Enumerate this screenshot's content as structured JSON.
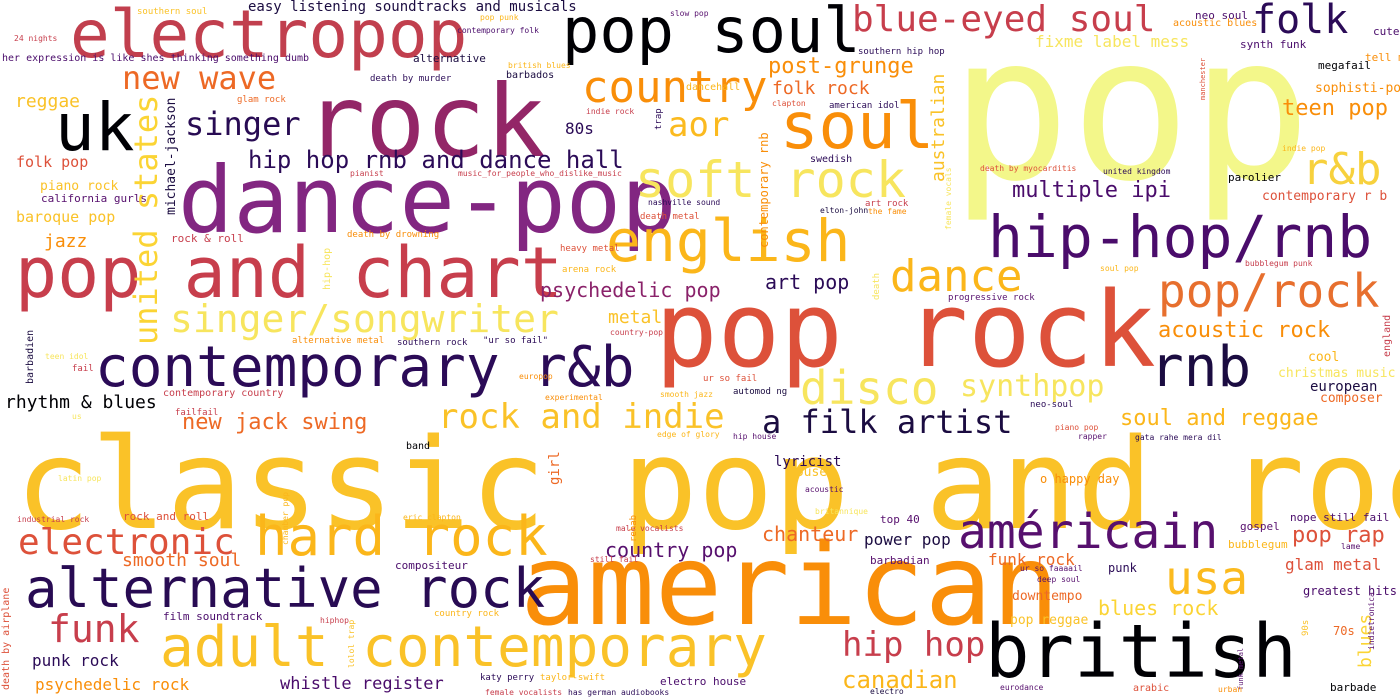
{
  "words": [
    {
      "text": "pop",
      "color": "#f3f78a"
    },
    {
      "text": "classic pop and rock",
      "color": "#fac228"
    },
    {
      "text": "american",
      "color": "#f98e09"
    },
    {
      "text": "pop rock",
      "color": "#dd513a"
    },
    {
      "text": "rock",
      "color": "#932667"
    },
    {
      "text": "dance-pop",
      "color": "#822681"
    },
    {
      "text": "pop and chart",
      "color": "#c73e4c"
    },
    {
      "text": "electropop",
      "color": "#c13f4e"
    },
    {
      "text": "british",
      "color": "#000004"
    },
    {
      "text": "adult contemporary",
      "color": "#fac228"
    },
    {
      "text": "contemporary r&b",
      "color": "#2b0b57"
    },
    {
      "text": "pop soul",
      "color": "#000004"
    },
    {
      "text": "alternative rock",
      "color": "#280b53"
    },
    {
      "text": "hip-hop/rnb",
      "color": "#4a0c6b"
    },
    {
      "text": "english",
      "color": "#fbb61a"
    },
    {
      "text": "soul",
      "color": "#f98e09"
    },
    {
      "text": "uk",
      "color": "#000004"
    },
    {
      "text": "hard rock",
      "color": "#fbb61a"
    },
    {
      "text": "américain",
      "color": "#57106e"
    },
    {
      "text": "soft rock",
      "color": "#f7e55e"
    },
    {
      "text": "country",
      "color": "#f98e09"
    },
    {
      "text": "rnb",
      "color": "#1b0c41"
    },
    {
      "text": "blue-eyed soul",
      "color": "#c73e4c"
    },
    {
      "text": "usa",
      "color": "#fbba1f"
    },
    {
      "text": "pop/rock",
      "color": "#e76f2e"
    },
    {
      "text": "r&b",
      "color": "#f7d13d"
    },
    {
      "text": "dance",
      "color": "#fbb61a"
    },
    {
      "text": "disco",
      "color": "#f7e55e"
    },
    {
      "text": "folk",
      "color": "#2b0b57"
    },
    {
      "text": "singer/songwriter",
      "color": "#f7e55e"
    },
    {
      "text": "british",
      "color": "#000004"
    },
    {
      "text": "rock and indie",
      "color": "#fac228"
    },
    {
      "text": "electronic",
      "color": "#dd513a"
    },
    {
      "text": "united states",
      "color": "#fbd434"
    },
    {
      "text": "new wave",
      "color": "#ed6925"
    },
    {
      "text": "hip hop",
      "color": "#c73e4c"
    },
    {
      "text": "funk",
      "color": "#c73e4c"
    },
    {
      "text": "synthpop",
      "color": "#f7e55e"
    },
    {
      "text": "a filk artist",
      "color": "#1b0c41"
    },
    {
      "text": "singer",
      "color": "#280b53"
    },
    {
      "text": "canadian",
      "color": "#fbb61a"
    },
    {
      "text": "aor",
      "color": "#fbba1f"
    },
    {
      "text": "hip hop rnb and dance hall",
      "color": "#2b0b57"
    },
    {
      "text": "new jack swing",
      "color": "#ed6925"
    },
    {
      "text": "multiple ipi",
      "color": "#4a0c6b"
    },
    {
      "text": "acoustic rock",
      "color": "#f98e09"
    },
    {
      "text": "soul and reggae",
      "color": "#fbb61a"
    },
    {
      "text": "post-grunge",
      "color": "#f98e09"
    },
    {
      "text": "psychedelic pop",
      "color": "#8a226a"
    },
    {
      "text": "pop rap",
      "color": "#dd513a"
    },
    {
      "text": "teen pop",
      "color": "#f98e09"
    },
    {
      "text": "blues rock",
      "color": "#fbd434"
    },
    {
      "text": "smooth soul",
      "color": "#ed6925"
    },
    {
      "text": "country pop",
      "color": "#57106e"
    },
    {
      "text": "punk rock",
      "color": "#2b0b57"
    },
    {
      "text": "psychedelic rock",
      "color": "#f98e09"
    },
    {
      "text": "whistle register",
      "color": "#4a0c6b"
    },
    {
      "text": "art pop",
      "color": "#2b0b57"
    },
    {
      "text": "folk rock",
      "color": "#ed6925"
    },
    {
      "text": "power pop",
      "color": "#1b0c41"
    },
    {
      "text": "funk rock",
      "color": "#ed6925"
    },
    {
      "text": "chanteur",
      "color": "#ed6925"
    },
    {
      "text": "glam metal",
      "color": "#dd513a"
    },
    {
      "text": "reggae",
      "color": "#fac228"
    },
    {
      "text": "rhythm & blues",
      "color": "#000004"
    },
    {
      "text": "jazz",
      "color": "#f98e09"
    },
    {
      "text": "metal",
      "color": "#fac228"
    },
    {
      "text": "australian",
      "color": "#fac228"
    },
    {
      "text": "80s",
      "color": "#2b0b57"
    },
    {
      "text": "fixme label mess",
      "color": "#f7e55e"
    },
    {
      "text": "easy listening soundtracks and musicals",
      "color": "#1b0c41"
    },
    {
      "text": "sophisti-pop",
      "color": "#f98e09"
    },
    {
      "text": "european",
      "color": "#1b0c41"
    },
    {
      "text": "contemporary r b",
      "color": "#dd513a"
    },
    {
      "text": "composer",
      "color": "#ed6925"
    },
    {
      "text": "lyricist",
      "color": "#2b0b57"
    },
    {
      "text": "house",
      "color": "#fac228"
    },
    {
      "text": "blues",
      "color": "#fbd434"
    },
    {
      "text": "downtempo",
      "color": "#ed6925"
    },
    {
      "text": "pop reggae",
      "color": "#fac228"
    },
    {
      "text": "folk pop",
      "color": "#dd513a"
    },
    {
      "text": "baroque pop",
      "color": "#fac228"
    },
    {
      "text": "piano rock",
      "color": "#fac228"
    },
    {
      "text": "michael-jackson",
      "color": "#1b0c41"
    },
    {
      "text": "contemporary rnb",
      "color": "#f98e09"
    },
    {
      "text": "girl",
      "color": "#ed6925"
    },
    {
      "text": "cool",
      "color": "#fbb61a"
    },
    {
      "text": "christmas music",
      "color": "#f7e55e"
    },
    {
      "text": "70s",
      "color": "#ed6925"
    },
    {
      "text": "greatest hits",
      "color": "#4a0c6b"
    },
    {
      "text": "gospel",
      "color": "#57106e"
    },
    {
      "text": "bubblegum",
      "color": "#fbb61a"
    },
    {
      "text": "nope still fail",
      "color": "#4a0c6b"
    },
    {
      "text": "tell me",
      "color": "#f98e09"
    },
    {
      "text": "megafail",
      "color": "#000004"
    },
    {
      "text": "cute",
      "color": "#4a0c6b"
    },
    {
      "text": "synth funk",
      "color": "#4a0c6b"
    },
    {
      "text": "neo soul",
      "color": "#4a0c6b"
    },
    {
      "text": "acoustic blues",
      "color": "#f98e09"
    },
    {
      "text": "parolier",
      "color": "#000004"
    },
    {
      "text": "barbade",
      "color": "#000004"
    },
    {
      "text": "punk",
      "color": "#2b0b57"
    },
    {
      "text": "o happy day",
      "color": "#f98e09"
    },
    {
      "text": "top 40",
      "color": "#57106e"
    },
    {
      "text": "barbadian",
      "color": "#57106e"
    },
    {
      "text": "compositeur",
      "color": "#4a0c6b"
    },
    {
      "text": "film soundtrack",
      "color": "#4a0c6b"
    },
    {
      "text": "rock and roll",
      "color": "#dd513a"
    },
    {
      "text": "electro house",
      "color": "#4a0c6b"
    },
    {
      "text": "katy perry",
      "color": "#2b0b57"
    },
    {
      "text": "california gurls",
      "color": "#57106e"
    },
    {
      "text": "rock & roll",
      "color": "#c73e4c"
    },
    {
      "text": "contemporary country",
      "color": "#c73e4c"
    },
    {
      "text": "alternative",
      "color": "#1b0c41"
    },
    {
      "text": "barbados",
      "color": "#1b0c41"
    },
    {
      "text": "dancehall",
      "color": "#fbb61a"
    },
    {
      "text": "glam rock",
      "color": "#ed6925"
    },
    {
      "text": "trap",
      "color": "#2b0b57"
    },
    {
      "text": "swedish",
      "color": "#2b0b57"
    },
    {
      "text": "american idol",
      "color": "#2b0b57"
    },
    {
      "text": "southern hip hop",
      "color": "#2b0b57"
    },
    {
      "text": "elton-john",
      "color": "#1b0c41"
    },
    {
      "text": "nashville sound",
      "color": "#2b0b57"
    },
    {
      "text": "death metal",
      "color": "#dd513a"
    },
    {
      "text": "heavy metal",
      "color": "#dd513a"
    },
    {
      "text": "arena rock",
      "color": "#fbb61a"
    },
    {
      "text": "progressive rock",
      "color": "#57106e"
    },
    {
      "text": "barbadien",
      "color": "#1b0c41"
    },
    {
      "text": "southern rock",
      "color": "#2b0b57"
    },
    {
      "text": "\"ur so fail\"",
      "color": "#2b0b57"
    },
    {
      "text": "ur so fail",
      "color": "#dd513a"
    },
    {
      "text": "automod ng",
      "color": "#1b0c41"
    },
    {
      "text": "band",
      "color": "#000004"
    },
    {
      "text": "hip house",
      "color": "#57106e"
    },
    {
      "text": "united kingdom",
      "color": "#2b0b57"
    },
    {
      "text": "neo-soul",
      "color": "#2b0b57"
    },
    {
      "text": "rapper",
      "color": "#57106e"
    },
    {
      "text": "gata rahe mera dil",
      "color": "#2b0b57"
    },
    {
      "text": "death by airplane",
      "color": "#dd513a"
    },
    {
      "text": "england",
      "color": "#c73e4c"
    },
    {
      "text": "arabic",
      "color": "#dd513a"
    },
    {
      "text": "electro",
      "color": "#1b0c41"
    },
    {
      "text": "has german audiobooks",
      "color": "#2b0b57"
    },
    {
      "text": "female vocalists",
      "color": "#c73e4c"
    },
    {
      "text": "industrial rock",
      "color": "#c73e4c"
    },
    {
      "text": "taylor-swift",
      "color": "#fbb61a"
    },
    {
      "text": "deep soul",
      "color": "#57106e"
    },
    {
      "text": "ur so faaaail",
      "color": "#57106e"
    },
    {
      "text": "eurodance",
      "color": "#57106e"
    },
    {
      "text": "funk metal",
      "color": "#57106e"
    },
    {
      "text": "urban",
      "color": "#f98e09"
    },
    {
      "text": "indietronica",
      "color": "#57106e"
    },
    {
      "text": "90s",
      "color": "#fac228"
    },
    {
      "text": "lame",
      "color": "#57106e"
    },
    {
      "text": "experimental",
      "color": "#f98e09"
    },
    {
      "text": "europop",
      "color": "#f98e09"
    },
    {
      "text": "smooth jazz",
      "color": "#fbb61a"
    },
    {
      "text": "piano pop",
      "color": "#dd513a"
    },
    {
      "text": "edge of glory",
      "color": "#fbb61a"
    },
    {
      "text": "acoustic",
      "color": "#57106e"
    },
    {
      "text": "still fail",
      "color": "#c73e4c"
    },
    {
      "text": "male vocalists",
      "color": "#c73e4c"
    },
    {
      "text": "eric clapton",
      "color": "#fbb61a"
    },
    {
      "text": "chamber pop",
      "color": "#fbb61a"
    },
    {
      "text": "hiphop",
      "color": "#c73e4c"
    },
    {
      "text": "lolol trap",
      "color": "#fac228"
    },
    {
      "text": "country rock",
      "color": "#fbb61a"
    },
    {
      "text": "rehab",
      "color": "#f98e09"
    },
    {
      "text": "failfail",
      "color": "#c73e4c"
    },
    {
      "text": "fail",
      "color": "#c73e4c"
    },
    {
      "text": "alternative metal",
      "color": "#f98e09"
    },
    {
      "text": "country-pop",
      "color": "#c73e4c"
    },
    {
      "text": "death by drowning",
      "color": "#f98e09"
    },
    {
      "text": "music_for_people_who_dislike_music",
      "color": "#c73e4c"
    },
    {
      "text": "pianist",
      "color": "#c73e4c"
    },
    {
      "text": "death by murder",
      "color": "#2b0b57"
    },
    {
      "text": "her expression is like shes thinking something dumb",
      "color": "#4a0c6b"
    },
    {
      "text": "24 nights",
      "color": "#c73e4c"
    },
    {
      "text": "southern soul",
      "color": "#fac228"
    },
    {
      "text": "contemporary folk",
      "color": "#4a0c6b"
    },
    {
      "text": "pop punk",
      "color": "#fbb61a"
    },
    {
      "text": "slow pop",
      "color": "#57106e"
    },
    {
      "text": "british blues",
      "color": "#fbb61a"
    },
    {
      "text": "indie rock",
      "color": "#c73e4c"
    },
    {
      "text": "clapton",
      "color": "#dd513a"
    },
    {
      "text": "art rock",
      "color": "#c73e4c"
    },
    {
      "text": "the fame",
      "color": "#f98e09"
    },
    {
      "text": "death by myocarditis",
      "color": "#dd513a"
    },
    {
      "text": "manchester",
      "color": "#dd513a"
    },
    {
      "text": "indie pop",
      "color": "#fbb61a"
    },
    {
      "text": "bubblegum punk",
      "color": "#c73e4c"
    },
    {
      "text": "female vocals",
      "color": "#f7e55e"
    },
    {
      "text": "soul pop",
      "color": "#fbb61a"
    },
    {
      "text": "latin pop",
      "color": "#f7e55e"
    },
    {
      "text": "britannique",
      "color": "#f7e55e"
    },
    {
      "text": "hip-hop",
      "color": "#f7e55e"
    },
    {
      "text": "us",
      "color": "#f7e55e"
    },
    {
      "text": "teen idol",
      "color": "#f7e55e"
    },
    {
      "text": "death",
      "color": "#f7e55e"
    }
  ]
}
